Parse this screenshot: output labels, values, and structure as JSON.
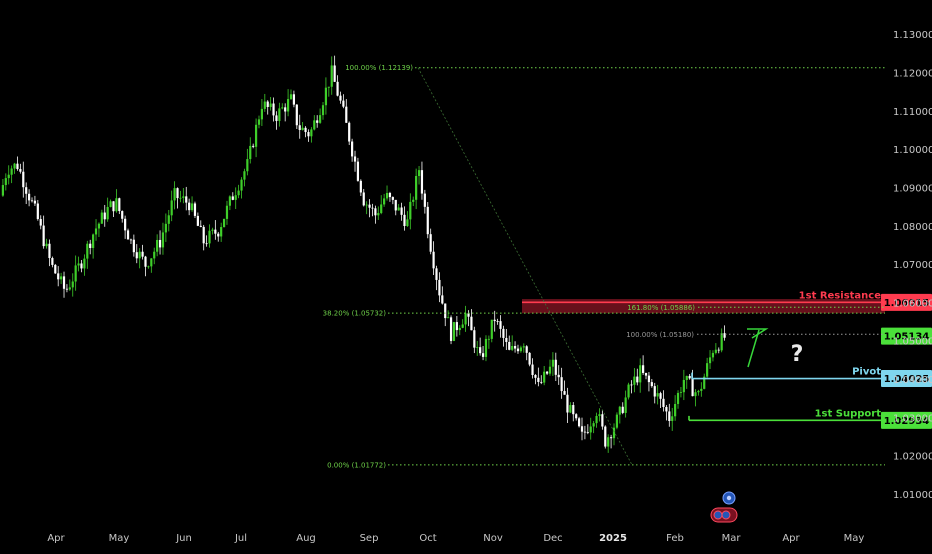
{
  "colors": {
    "background": "#000000",
    "candle_up": "#3fcf2a",
    "candle_down": "#ffffff",
    "fib": "#6fd24a",
    "fib_muted": "#9a9a9a",
    "resistance": "#ff3b4f",
    "resistance_zone": "#8a1524",
    "pivot": "#7fd6ee",
    "support": "#4be03a",
    "axis_text": "#c8c8c8",
    "arrow": "#37d63a"
  },
  "icons": [
    "question-mark-icon",
    "economic-event-icon",
    "earnings-event-icon"
  ],
  "chart_data": {
    "type": "candlestick",
    "x_axis": {
      "labels": [
        "Apr",
        "May",
        "Jun",
        "Jul",
        "Aug",
        "Sep",
        "Oct",
        "Nov",
        "Dec",
        "2025",
        "Feb",
        "Mar",
        "Apr",
        "May"
      ],
      "highlighted": "2025"
    },
    "y_axis": {
      "range": [
        1.0045,
        1.1345
      ],
      "ticks": [
        "1.13000",
        "1.12000",
        "1.11000",
        "1.10000",
        "1.09000",
        "1.08000",
        "1.07000",
        "1.06000",
        "1.05000",
        "1.04000",
        "1.03000",
        "1.02000",
        "1.01000"
      ]
    },
    "price_path": [
      [
        0,
        1.088
      ],
      [
        0.5,
        1.095
      ],
      [
        1.2,
        1.096
      ],
      [
        2.5,
        1.083
      ],
      [
        3.5,
        1.07
      ],
      [
        4.5,
        1.063
      ],
      [
        5.5,
        1.07
      ],
      [
        6.5,
        1.079
      ],
      [
        7.5,
        1.085
      ],
      [
        8.0,
        1.086
      ],
      [
        9.0,
        1.076
      ],
      [
        10.0,
        1.07
      ],
      [
        11.0,
        1.076
      ],
      [
        12.0,
        1.088
      ],
      [
        13.0,
        1.086
      ],
      [
        14.0,
        1.076
      ],
      [
        15.0,
        1.079
      ],
      [
        16.0,
        1.088
      ],
      [
        17.0,
        1.096
      ],
      [
        18.0,
        1.112
      ],
      [
        19.0,
        1.109
      ],
      [
        20.0,
        1.113
      ],
      [
        20.5,
        1.106
      ],
      [
        21.3,
        1.104
      ],
      [
        22.0,
        1.111
      ],
      [
        22.8,
        1.12
      ],
      [
        23.5,
        1.111
      ],
      [
        24.2,
        1.1
      ],
      [
        25.0,
        1.087
      ],
      [
        25.8,
        1.083
      ],
      [
        26.5,
        1.088
      ],
      [
        27.2,
        1.085
      ],
      [
        28.0,
        1.081
      ],
      [
        28.8,
        1.095
      ],
      [
        29.5,
        1.077
      ],
      [
        30.2,
        1.063
      ],
      [
        31.0,
        1.052
      ],
      [
        32.0,
        1.057
      ],
      [
        33.0,
        1.045
      ],
      [
        34.0,
        1.056
      ],
      [
        35.0,
        1.047
      ],
      [
        36.0,
        1.05
      ],
      [
        37.0,
        1.038
      ],
      [
        38.0,
        1.044
      ],
      [
        39.0,
        1.033
      ],
      [
        40.0,
        1.025
      ],
      [
        41.0,
        1.032
      ],
      [
        41.6,
        1.024
      ],
      [
        42.5,
        1.03
      ],
      [
        43.3,
        1.038
      ],
      [
        44.0,
        1.042
      ],
      [
        45.0,
        1.037
      ],
      [
        46.0,
        1.03
      ],
      [
        47.0,
        1.04
      ],
      [
        48.0,
        1.036
      ],
      [
        49.0,
        1.048
      ],
      [
        49.8,
        1.051
      ]
    ],
    "levels": [
      {
        "name": "1st Resistance",
        "value": 1.06015,
        "tag": "1.06015"
      },
      {
        "name": "Pivot",
        "value": 1.04025,
        "tag": "1.04025"
      },
      {
        "name": "1st Support",
        "value": 1.02934,
        "tag": "1.02934"
      }
    ],
    "current_price_tag": {
      "value": 1.05134,
      "tag": "1.05134"
    },
    "resistance_zone": [
      1.0573,
      1.061
    ],
    "fibonacci_labels": [
      {
        "text": "100.00% (1.12139)",
        "value": 1.12139
      },
      {
        "text": "38.20% (1.05732)",
        "value": 1.05732
      },
      {
        "text": "0.00% (1.01772)",
        "value": 1.01772
      },
      {
        "text": "161.80% (1.05886)",
        "value": 1.05886
      },
      {
        "text": "100.00% (1.05180)",
        "value": 1.0518
      }
    ],
    "annotations": [
      "?"
    ],
    "grid": false
  }
}
